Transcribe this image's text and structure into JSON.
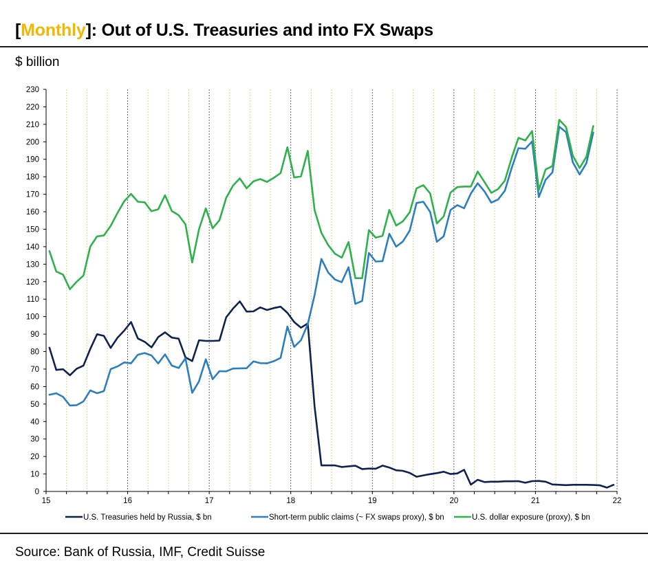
{
  "header": {
    "title_open": "[",
    "title_keyword": "Monthly",
    "title_rest": "]: Out of U.S. Treasuries and into FX Swaps",
    "unit": "$ billion",
    "source": "Source: Bank of Russia, IMF, Credit Suisse"
  },
  "colors": {
    "keyword": "#f2b705",
    "treasuries": "#0f2150",
    "fx_swaps": "#2a7ec2",
    "exposure": "#2db24a"
  },
  "chart_data": {
    "type": "line",
    "ylim": [
      0,
      230
    ],
    "y_ticks": [
      0,
      10,
      20,
      30,
      40,
      50,
      60,
      70,
      80,
      90,
      100,
      110,
      120,
      130,
      140,
      150,
      160,
      170,
      180,
      190,
      200,
      210,
      220,
      230
    ],
    "x_ticks": [
      15,
      16,
      17,
      18,
      19,
      20,
      21,
      22
    ],
    "x_tick_labels": [
      "15",
      "16",
      "17",
      "18",
      "19",
      "20",
      "21",
      "22"
    ],
    "xlim": [
      15,
      22
    ],
    "x_start": 15.0417,
    "x_step": 0.08333,
    "series": [
      {
        "name": "U.S. Treasuries held by Russia, $ bn",
        "color": "#0f2150",
        "values": [
          82.2,
          69.5,
          69.9,
          66.5,
          70.2,
          72.0,
          81.5,
          89.9,
          89.0,
          82.1,
          87.9,
          92.0,
          96.9,
          87.5,
          85.6,
          82.4,
          88.3,
          91.0,
          88.0,
          87.4,
          76.7,
          74.6,
          86.5,
          86.1,
          86.1,
          86.3,
          99.6,
          104.6,
          108.7,
          102.9,
          103.0,
          105.3,
          103.8,
          104.9,
          105.7,
          102.2,
          96.9,
          93.7,
          96.1,
          48.7,
          14.9,
          14.9,
          14.9,
          14.0,
          14.4,
          14.7,
          12.8,
          13.1,
          13.0,
          14.8,
          13.7,
          12.1,
          11.8,
          10.6,
          8.4,
          9.2,
          9.9,
          10.5,
          11.3,
          10.0,
          10.3,
          12.4,
          3.9,
          6.7,
          5.4,
          5.6,
          5.6,
          5.8,
          5.8,
          5.9,
          5.0,
          5.9,
          6.0,
          5.6,
          4.0,
          3.8,
          3.6,
          3.8,
          3.8,
          3.8,
          3.7,
          3.5,
          2.2,
          3.8
        ]
      },
      {
        "name": "Short-term public claims (~ FX swaps proxy), $ bn",
        "color": "#2a7ec2",
        "values": [
          55.3,
          56.2,
          54.1,
          49.2,
          49.4,
          51.5,
          57.8,
          56.2,
          57.4,
          70.0,
          71.5,
          73.8,
          73.3,
          78.2,
          79.2,
          77.8,
          73.2,
          78.4,
          72.0,
          70.6,
          76.1,
          56.4,
          63.0,
          75.6,
          64.2,
          68.8,
          68.7,
          70.3,
          70.4,
          70.5,
          74.4,
          73.4,
          73.3,
          74.5,
          76.4,
          94.3,
          82.7,
          86.5,
          95.7,
          112.3,
          133.0,
          125.3,
          121.2,
          119.7,
          128.3,
          107.3,
          109.0,
          136.4,
          131.5,
          131.7,
          147.4,
          140.0,
          143.0,
          149.2,
          165.0,
          165.7,
          159.9,
          142.8,
          146.0,
          161.0,
          163.8,
          162.0,
          170.4,
          176.3,
          171.6,
          165.2,
          167.0,
          172.0,
          185.0,
          196.4,
          196.0,
          200.2,
          168.4,
          178.3,
          182.5,
          208.6,
          205.5,
          188.3,
          181.3,
          187.8,
          205.3
        ]
      },
      {
        "name": "U.S. dollar exposure (proxy), $ bn",
        "color": "#2db24a",
        "values": [
          137.5,
          125.8,
          124.0,
          115.7,
          120.0,
          123.5,
          140.0,
          145.9,
          146.4,
          151.9,
          159.3,
          166.0,
          170.2,
          165.7,
          165.4,
          160.3,
          161.4,
          169.4,
          160.4,
          158.0,
          152.8,
          131.0,
          150.0,
          161.9,
          150.5,
          155.1,
          167.9,
          174.9,
          179.1,
          173.4,
          177.4,
          178.7,
          177.1,
          179.4,
          182.1,
          196.9,
          179.6,
          180.2,
          194.8,
          161.0,
          147.9,
          141.0,
          136.0,
          133.7,
          142.7,
          122.0,
          122.0,
          149.5,
          145.2,
          146.2,
          161.0,
          152.1,
          154.5,
          159.7,
          173.4,
          175.2,
          170.5,
          153.3,
          157.3,
          171.0,
          174.1,
          174.4,
          174.4,
          183.0,
          177.0,
          170.8,
          173.0,
          177.8,
          190.8,
          202.3,
          200.8,
          206.1,
          172.4,
          184.2,
          186.1,
          212.6,
          208.4,
          192.1,
          185.0,
          191.5,
          209.0
        ]
      }
    ]
  }
}
